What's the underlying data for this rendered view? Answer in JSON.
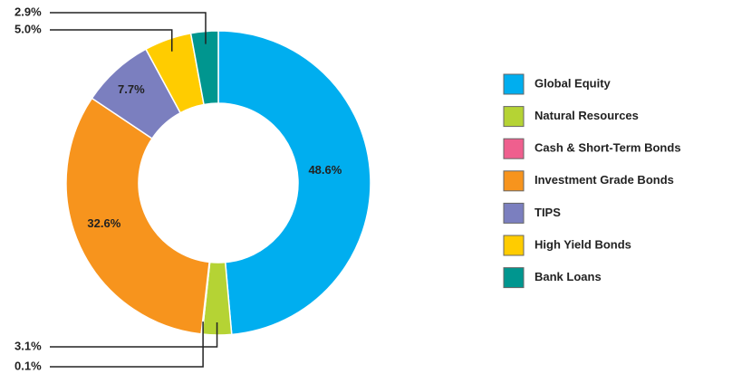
{
  "chart_data": {
    "type": "donut",
    "categories": [
      "Global Equity",
      "Natural Resources",
      "Cash & Short-Term Bonds",
      "Investment Grade Bonds",
      "TIPS",
      "High Yield Bonds",
      "Bank Loans"
    ],
    "values": [
      48.6,
      3.1,
      0.1,
      32.6,
      7.7,
      5.0,
      2.9
    ],
    "value_labels": [
      "48.6%",
      "3.1%",
      "0.1%",
      "32.6%",
      "7.7%",
      "5.0%",
      "2.9%"
    ],
    "colors": [
      "#00aeef",
      "#b5d334",
      "#ef5f8e",
      "#f7941d",
      "#7b7fbf",
      "#ffcc00",
      "#00968f"
    ],
    "legend": "right"
  }
}
